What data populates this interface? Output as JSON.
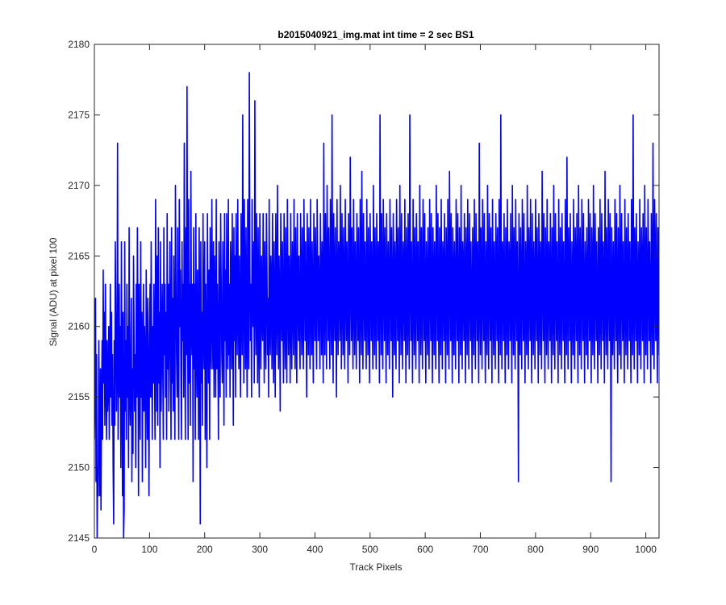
{
  "chart_data": {
    "type": "line",
    "title": "b2015040921_img.mat int time = 2 sec   BS1",
    "xlabel": "Track Pixels",
    "ylabel": "Signal (ADU) at pixel 100",
    "xlim": [
      0,
      1024
    ],
    "ylim": [
      2145,
      2180
    ],
    "xticks": [
      "0",
      "100",
      "200",
      "300",
      "400",
      "500",
      "600",
      "700",
      "800",
      "900",
      "1000"
    ],
    "yticks": [
      "2145",
      "2150",
      "2155",
      "2160",
      "2165",
      "2170",
      "2175",
      "2180"
    ],
    "grid": false,
    "series": [
      {
        "color": "#0000ff",
        "x_start": 0,
        "x_step": 1,
        "values": [
          2152,
          2156,
          2162,
          2149,
          2158,
          2145,
          2150,
          2148,
          2159,
          2153,
          2148,
          2157,
          2147,
          2155,
          2159,
          2152,
          2164,
          2156,
          2161,
          2153,
          2163,
          2157,
          2152,
          2159,
          2154,
          2156,
          2160,
          2152,
          2157,
          2163,
          2155,
          2161,
          2153,
          2158,
          2150,
          2146,
          2159,
          2153,
          2166,
          2160,
          2154,
          2157,
          2173,
          2152,
          2157,
          2163,
          2155,
          2160,
          2150,
          2166,
          2157,
          2148,
          2161,
          2145,
          2147,
          2166,
          2154,
          2159,
          2152,
          2163,
          2155,
          2160,
          2150,
          2167,
          2156,
          2153,
          2158,
          2162,
          2149,
          2157,
          2151,
          2165,
          2159,
          2154,
          2158,
          2150,
          2163,
          2155,
          2167,
          2160,
          2148,
          2163,
          2157,
          2152,
          2166,
          2155,
          2161,
          2149,
          2158,
          2163,
          2154,
          2160,
          2157,
          2150,
          2164,
          2158,
          2152,
          2162,
          2156,
          2148,
          2159,
          2163,
          2155,
          2166,
          2158,
          2152,
          2160,
          2156,
          2163,
          2157,
          2152,
          2169,
          2160,
          2154,
          2165,
          2153,
          2167,
          2156,
          2161,
          2150,
          2166,
          2154,
          2158,
          2163,
          2157,
          2152,
          2167,
          2158,
          2163,
          2155,
          2161,
          2152,
          2168,
          2157,
          2163,
          2154,
          2160,
          2166,
          2158,
          2152,
          2167,
          2156,
          2162,
          2154,
          2165,
          2158,
          2152,
          2170,
          2163,
          2158,
          2155,
          2167,
          2158,
          2152,
          2169,
          2160,
          2164,
          2157,
          2152,
          2166,
          2159,
          2163,
          2155,
          2173,
          2160,
          2152,
          2167,
          2158,
          2177,
          2162,
          2152,
          2169,
          2156,
          2163,
          2153,
          2171,
          2160,
          2158,
          2163,
          2149,
          2167,
          2157,
          2163,
          2152,
          2168,
          2159,
          2155,
          2164,
          2159,
          2152,
          2167,
          2160,
          2146,
          2166,
          2156,
          2161,
          2153,
          2168,
          2160,
          2157,
          2166,
          2152,
          2163,
          2158,
          2150,
          2168,
          2161,
          2156,
          2164,
          2152,
          2167,
          2159,
          2157,
          2169,
          2161,
          2157,
          2166,
          2155,
          2165,
          2160,
          2155,
          2169,
          2157,
          2163,
          2158,
          2152,
          2166,
          2160,
          2155,
          2168,
          2163,
          2158,
          2156,
          2166,
          2161,
          2153,
          2168,
          2159,
          2164,
          2155,
          2168,
          2162,
          2157,
          2169,
          2158,
          2163,
          2155,
          2166,
          2163,
          2157,
          2168,
          2161,
          2153,
          2167,
          2159,
          2165,
          2155,
          2168,
          2162,
          2158,
          2169,
          2162,
          2157,
          2165,
          2160,
          2155,
          2168,
          2161,
          2158,
          2175,
          2163,
          2156,
          2169,
          2162,
          2157,
          2167,
          2160,
          2155,
          2169,
          2162,
          2157,
          2178,
          2164,
          2159,
          2163,
          2155,
          2169,
          2161,
          2160,
          2166,
          2156,
          2176,
          2163,
          2158,
          2168,
          2162,
          2156,
          2167,
          2160,
          2155,
          2168,
          2162,
          2157,
          2165,
          2161,
          2159,
          2168,
          2162,
          2156,
          2166,
          2160,
          2157,
          2168,
          2164,
          2158,
          2162,
          2155,
          2169,
          2160,
          2158,
          2165,
          2163,
          2157,
          2168,
          2161,
          2156,
          2166,
          2160,
          2155,
          2168,
          2163,
          2158,
          2170,
          2162,
          2157,
          2165,
          2161,
          2154,
          2168,
          2163,
          2159,
          2166,
          2160,
          2156,
          2168,
          2162,
          2157,
          2167,
          2161,
          2156,
          2169,
          2163,
          2158,
          2165,
          2162,
          2156,
          2168,
          2161,
          2157,
          2166,
          2163,
          2158,
          2169,
          2162,
          2157,
          2167,
          2161,
          2156,
          2168,
          2163,
          2159,
          2165,
          2160,
          2157,
          2168,
          2162,
          2158,
          2167,
          2161,
          2157,
          2169,
          2164,
          2159,
          2166,
          2161,
          2155,
          2168,
          2163,
          2158,
          2167,
          2162,
          2157,
          2169,
          2162,
          2158,
          2166,
          2161,
          2156,
          2168,
          2163,
          2159,
          2167,
          2161,
          2157,
          2169,
          2164,
          2159,
          2165,
          2162,
          2157,
          2168,
          2163,
          2158,
          2166,
          2161,
          2156,
          2173,
          2162,
          2158,
          2168,
          2163,
          2157,
          2170,
          2164,
          2159,
          2167,
          2161,
          2157,
          2169,
          2163,
          2158,
          2175,
          2162,
          2156,
          2168,
          2163,
          2159,
          2167,
          2161,
          2155,
          2169,
          2162,
          2158,
          2166,
          2164,
          2159,
          2170,
          2162,
          2157,
          2168,
          2163,
          2158,
          2167,
          2161,
          2157,
          2169,
          2163,
          2159,
          2166,
          2162,
          2156,
          2168,
          2163,
          2158,
          2172,
          2164,
          2159,
          2167,
          2161,
          2157,
          2169,
          2163,
          2158,
          2166,
          2162,
          2157,
          2168,
          2164,
          2159,
          2167,
          2161,
          2156,
          2169,
          2163,
          2158,
          2171,
          2162,
          2157,
          2168,
          2164,
          2159,
          2166,
          2161,
          2157,
          2169,
          2163,
          2158,
          2167,
          2162,
          2156,
          2168,
          2164,
          2159,
          2166,
          2161,
          2157,
          2170,
          2163,
          2158,
          2167,
          2162,
          2157,
          2168,
          2164,
          2159,
          2166,
          2161,
          2156,
          2175,
          2163,
          2158,
          2168,
          2162,
          2157,
          2169,
          2164,
          2159,
          2167,
          2161,
          2156,
          2168,
          2163,
          2158,
          2166,
          2162,
          2157,
          2169,
          2164,
          2159,
          2167,
          2161,
          2155,
          2168,
          2163,
          2158,
          2166,
          2162,
          2157,
          2169,
          2164,
          2159,
          2167,
          2161,
          2156,
          2170,
          2163,
          2158,
          2168,
          2162,
          2157,
          2166,
          2164,
          2159,
          2169,
          2161,
          2156,
          2167,
          2163,
          2158,
          2168,
          2162,
          2157,
          2175,
          2164,
          2159,
          2166,
          2161,
          2156,
          2169,
          2163,
          2158,
          2167,
          2162,
          2157,
          2168,
          2164,
          2159,
          2166,
          2161,
          2156,
          2170,
          2163,
          2158,
          2167,
          2162,
          2157,
          2169,
          2164,
          2159,
          2168,
          2161,
          2156,
          2166,
          2163,
          2158,
          2167,
          2162,
          2157,
          2169,
          2164,
          2159,
          2168,
          2161,
          2156,
          2167,
          2163,
          2158,
          2166,
          2162,
          2157,
          2170,
          2164,
          2159,
          2168,
          2161,
          2156,
          2167,
          2163,
          2158,
          2169,
          2162,
          2157,
          2166,
          2164,
          2159,
          2168,
          2161,
          2156,
          2167,
          2163,
          2158,
          2169,
          2162,
          2157,
          2171,
          2164,
          2159,
          2168,
          2161,
          2156,
          2167,
          2163,
          2158,
          2166,
          2162,
          2157,
          2169,
          2164,
          2159,
          2168,
          2161,
          2156,
          2167,
          2163,
          2158,
          2170,
          2162,
          2157,
          2166,
          2164,
          2159,
          2168,
          2161,
          2156,
          2167,
          2163,
          2158,
          2169,
          2162,
          2157,
          2168,
          2164,
          2159,
          2166,
          2161,
          2156,
          2167,
          2163,
          2158,
          2169,
          2162,
          2157,
          2168,
          2164,
          2159,
          2166,
          2161,
          2156,
          2173,
          2163,
          2158,
          2167,
          2162,
          2157,
          2169,
          2164,
          2159,
          2168,
          2161,
          2156,
          2166,
          2163,
          2158,
          2170,
          2162,
          2157,
          2168,
          2164,
          2159,
          2167,
          2161,
          2156,
          2169,
          2163,
          2158,
          2166,
          2162,
          2157,
          2168,
          2164,
          2159,
          2167,
          2161,
          2156,
          2169,
          2163,
          2158,
          2175,
          2162,
          2157,
          2166,
          2164,
          2159,
          2168,
          2161,
          2156,
          2167,
          2163,
          2158,
          2169,
          2162,
          2157,
          2166,
          2164,
          2159,
          2168,
          2161,
          2156,
          2170,
          2163,
          2158,
          2167,
          2162,
          2157,
          2169,
          2164,
          2159,
          2166,
          2161,
          2149,
          2168,
          2163,
          2158,
          2167,
          2162,
          2157,
          2169,
          2164,
          2159,
          2168,
          2161,
          2156,
          2166,
          2163,
          2158,
          2170,
          2162,
          2157,
          2167,
          2164,
          2159,
          2169,
          2161,
          2156,
          2168,
          2163,
          2158,
          2166,
          2162,
          2157,
          2169,
          2164,
          2159,
          2167,
          2161,
          2156,
          2168,
          2163,
          2158,
          2166,
          2162,
          2157,
          2171,
          2164,
          2159,
          2168,
          2161,
          2156,
          2167,
          2163,
          2158,
          2169,
          2162,
          2157,
          2166,
          2164,
          2159,
          2168,
          2161,
          2156,
          2167,
          2163,
          2158,
          2170,
          2162,
          2157,
          2168,
          2164,
          2159,
          2166,
          2161,
          2156,
          2169,
          2163,
          2158,
          2167,
          2162,
          2157,
          2168,
          2164,
          2159,
          2166,
          2161,
          2156,
          2169,
          2163,
          2158,
          2172,
          2162,
          2157,
          2167,
          2164,
          2159,
          2168,
          2161,
          2156,
          2166,
          2163,
          2158,
          2169,
          2162,
          2157,
          2167,
          2164,
          2159,
          2168,
          2161,
          2156,
          2170,
          2163,
          2158,
          2167,
          2162,
          2157,
          2169,
          2164,
          2159,
          2168,
          2161,
          2156,
          2166,
          2163,
          2158,
          2167,
          2162,
          2157,
          2169,
          2164,
          2159,
          2168,
          2161,
          2156,
          2167,
          2163,
          2158,
          2170,
          2162,
          2157,
          2168,
          2164,
          2159,
          2166,
          2161,
          2156,
          2167,
          2163,
          2158,
          2169,
          2162,
          2157,
          2168,
          2164,
          2159,
          2166,
          2161,
          2156,
          2171,
          2163,
          2158,
          2167,
          2162,
          2157,
          2169,
          2164,
          2159,
          2168,
          2161,
          2149,
          2167,
          2163,
          2158,
          2166,
          2162,
          2157,
          2169,
          2164,
          2159,
          2168,
          2161,
          2156,
          2167,
          2163,
          2158,
          2170,
          2162,
          2157,
          2168,
          2164,
          2159,
          2166,
          2161,
          2156,
          2169,
          2163,
          2158,
          2167,
          2162,
          2157,
          2168,
          2164,
          2159,
          2166,
          2161,
          2156,
          2169,
          2163,
          2158,
          2175,
          2162,
          2157,
          2167,
          2164,
          2159,
          2168,
          2161,
          2156,
          2166,
          2163,
          2158,
          2169,
          2162,
          2157,
          2167,
          2164,
          2159,
          2168,
          2161,
          2156,
          2170,
          2163,
          2158,
          2167,
          2162,
          2157,
          2169,
          2164,
          2159,
          2166,
          2161,
          2156,
          2168,
          2163,
          2158,
          2173,
          2162,
          2157,
          2169,
          2164,
          2159,
          2168,
          2161,
          2156,
          2167,
          2163,
          2158,
          2166,
          2162,
          2157,
          2169,
          2164,
          2159,
          2168,
          2161,
          2156,
          2167,
          2163,
          2158,
          2170,
          2162,
          2157,
          2168,
          2164,
          2159,
          2166,
          2161,
          2156,
          2169,
          2163,
          2158,
          2167,
          2162,
          2157,
          2168,
          2164,
          2159,
          2166,
          2161,
          2155,
          2153,
          2159,
          2165,
          2165,
          2165,
          2153,
          2168,
          2158
        ]
      }
    ]
  }
}
